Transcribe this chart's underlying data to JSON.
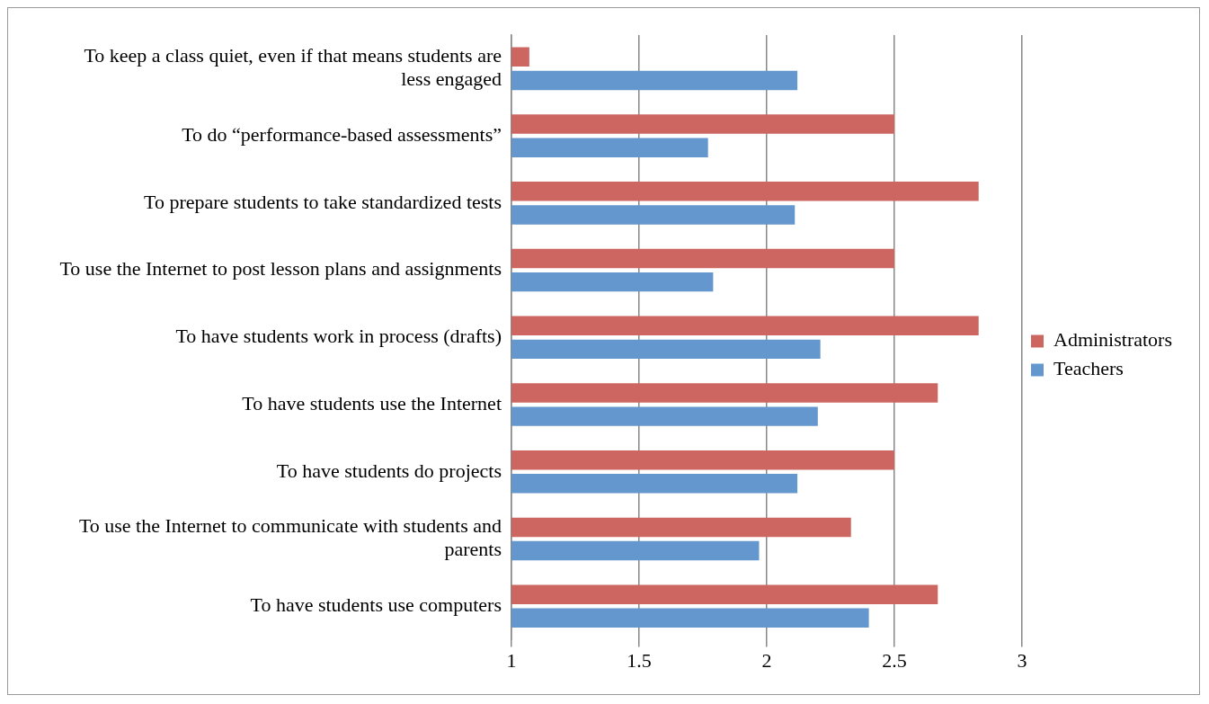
{
  "chart_data": {
    "type": "bar",
    "orientation": "horizontal",
    "categories": [
      "To keep a class quiet, even if that means students are less engaged",
      "To do “performance-based assessments”",
      "To prepare students to take standardized tests",
      "To use the Internet to post lesson plans and assignments",
      "To have students work in process (drafts)",
      "To have students use the Internet",
      "To have students do projects",
      "To use the Internet to communicate with students and parents",
      "To have students use computers"
    ],
    "series": [
      {
        "name": "Administrators",
        "color": "#cd6660",
        "values": [
          1.07,
          2.5,
          2.83,
          2.5,
          2.83,
          2.67,
          2.5,
          2.33,
          2.67
        ]
      },
      {
        "name": "Teachers",
        "color": "#6497cd",
        "values": [
          2.12,
          1.77,
          2.11,
          1.79,
          2.21,
          2.2,
          2.12,
          1.97,
          2.4
        ]
      }
    ],
    "xlim": [
      1,
      3
    ],
    "xticks": [
      1,
      1.5,
      2,
      2.5,
      3
    ],
    "grid": "x",
    "legend": "right"
  }
}
